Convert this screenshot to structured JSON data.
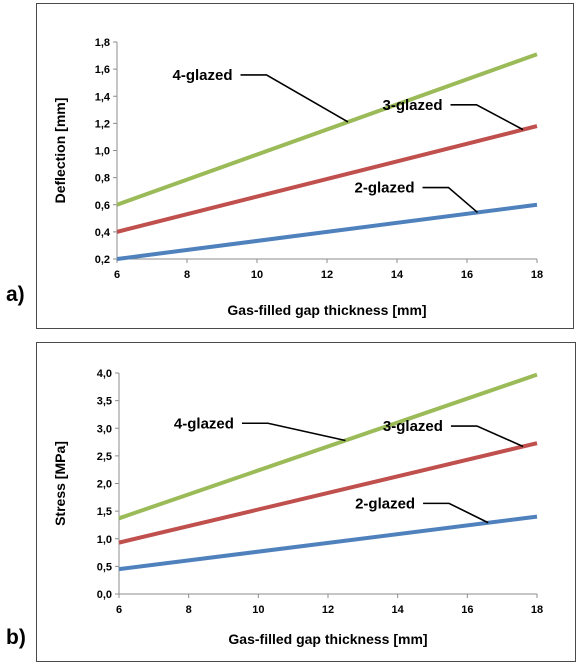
{
  "panels": [
    {
      "letter": "a)",
      "chart_data": {
        "type": "line",
        "title": "",
        "xlabel": "Gas-filled gap thickness [mm]",
        "ylabel": "Deflection [mm]",
        "xlim": [
          6,
          18
        ],
        "ylim": [
          0.2,
          1.8
        ],
        "xticks": [
          "6",
          "8",
          "10",
          "12",
          "14",
          "16",
          "18"
        ],
        "yticks": [
          "0,2",
          "0,4",
          "0,6",
          "0,8",
          "1,0",
          "1,2",
          "1,4",
          "1,6",
          "1,8"
        ],
        "grid": false,
        "legend": "none",
        "series": [
          {
            "name": "4-glazed",
            "color": "#9bbb59",
            "x": [
              6,
              18
            ],
            "y": [
              0.6,
              1.71
            ]
          },
          {
            "name": "3-glazed",
            "color": "#c0504d",
            "x": [
              6,
              18
            ],
            "y": [
              0.4,
              1.18
            ]
          },
          {
            "name": "2-glazed",
            "color": "#4f81bd",
            "x": [
              6,
              18
            ],
            "y": [
              0.2,
              0.6
            ]
          }
        ],
        "annotations": [
          {
            "text": "4-glazed",
            "series": 0,
            "label_x": 9.3,
            "label_y": 1.52,
            "target_x": 12.6
          },
          {
            "text": "3-glazed",
            "series": 1,
            "label_x": 15.3,
            "label_y": 1.3,
            "target_x": 17.6
          },
          {
            "text": "2-glazed",
            "series": 2,
            "label_x": 14.5,
            "label_y": 0.69,
            "target_x": 16.3
          }
        ]
      }
    },
    {
      "letter": "b)",
      "chart_data": {
        "type": "line",
        "title": "",
        "xlabel": "Gas-filled gap thickness [mm]",
        "ylabel": "Stress [MPa]",
        "xlim": [
          6,
          18
        ],
        "ylim": [
          0.0,
          4.0
        ],
        "xticks": [
          "6",
          "8",
          "10",
          "12",
          "14",
          "16",
          "18"
        ],
        "yticks": [
          "0,0",
          "0,5",
          "1,0",
          "1,5",
          "2,0",
          "2,5",
          "3,0",
          "3,5",
          "4,0"
        ],
        "grid": false,
        "legend": "none",
        "series": [
          {
            "name": "4-glazed",
            "color": "#9bbb59",
            "x": [
              6,
              18
            ],
            "y": [
              1.37,
              3.97
            ]
          },
          {
            "name": "3-glazed",
            "color": "#c0504d",
            "x": [
              6,
              18
            ],
            "y": [
              0.93,
              2.73
            ]
          },
          {
            "name": "2-glazed",
            "color": "#4f81bd",
            "x": [
              6,
              18
            ],
            "y": [
              0.45,
              1.4
            ]
          }
        ],
        "annotations": [
          {
            "text": "4-glazed",
            "series": 0,
            "label_x": 9.3,
            "label_y": 3.0,
            "target_x": 12.5
          },
          {
            "text": "3-glazed",
            "series": 1,
            "label_x": 15.3,
            "label_y": 2.95,
            "target_x": 17.6
          },
          {
            "text": "2-glazed",
            "series": 2,
            "label_x": 14.5,
            "label_y": 1.55,
            "target_x": 16.6
          }
        ]
      }
    }
  ]
}
